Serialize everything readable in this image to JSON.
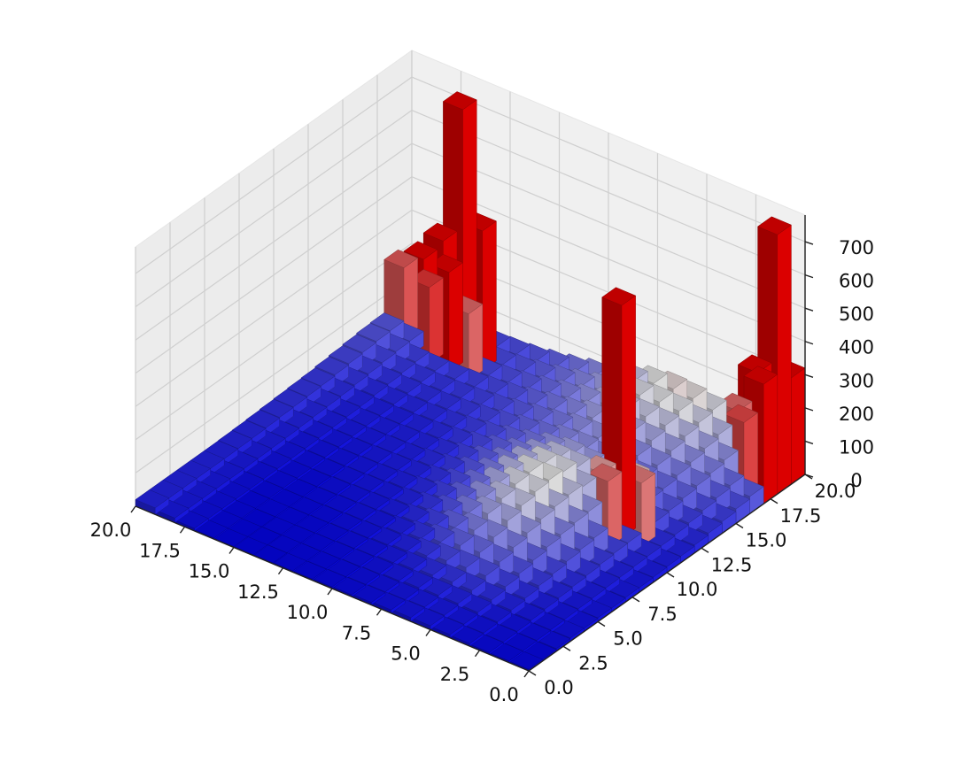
{
  "chart_data": {
    "type": "bar3d",
    "title": "",
    "xlabel": "",
    "ylabel": "",
    "zlabel": "",
    "x_ticks": [
      "0.0",
      "2.5",
      "5.0",
      "7.5",
      "10.0",
      "12.5",
      "15.0",
      "17.5",
      "20.0"
    ],
    "y_ticks": [
      "0.0",
      "2.5",
      "5.0",
      "7.5",
      "10.0",
      "12.5",
      "15.0",
      "17.5",
      "20.0"
    ],
    "z_ticks": [
      "0",
      "100",
      "200",
      "300",
      "400",
      "500",
      "600",
      "700"
    ],
    "xlim": [
      0,
      20
    ],
    "ylim": [
      0,
      20
    ],
    "zlim": [
      0,
      780
    ],
    "grid": true,
    "colormap": "bwr",
    "bar_size": 1,
    "base_heights": [
      [
        5,
        5,
        8,
        10,
        10,
        12,
        12,
        14,
        14,
        16,
        18,
        20,
        24,
        30,
        36,
        44,
        52,
        60,
        70,
        80
      ],
      [
        5,
        6,
        8,
        10,
        12,
        14,
        16,
        18,
        20,
        22,
        24,
        26,
        30,
        36,
        44,
        52,
        60,
        70,
        80,
        90
      ],
      [
        6,
        8,
        10,
        14,
        18,
        22,
        26,
        30,
        34,
        38,
        40,
        42,
        44,
        48,
        56,
        64,
        72,
        82,
        92,
        100
      ],
      [
        8,
        10,
        14,
        20,
        26,
        34,
        40,
        48,
        54,
        60,
        62,
        60,
        56,
        56,
        60,
        70,
        80,
        92,
        104,
        112
      ],
      [
        10,
        12,
        18,
        26,
        36,
        46,
        56,
        66,
        74,
        80,
        84,
        80,
        70,
        64,
        66,
        76,
        90,
        104,
        116,
        124
      ],
      [
        12,
        14,
        20,
        30,
        44,
        56,
        70,
        84,
        96,
        104,
        110,
        104,
        90,
        74,
        70,
        80,
        96,
        112,
        126,
        134
      ],
      [
        12,
        14,
        20,
        30,
        44,
        60,
        76,
        96,
        112,
        124,
        130,
        124,
        108,
        88,
        76,
        82,
        98,
        114,
        128,
        138
      ],
      [
        10,
        12,
        18,
        26,
        40,
        56,
        72,
        92,
        108,
        122,
        128,
        124,
        110,
        92,
        80,
        84,
        98,
        112,
        124,
        130
      ],
      [
        8,
        10,
        14,
        20,
        30,
        42,
        56,
        70,
        84,
        96,
        102,
        100,
        92,
        82,
        76,
        80,
        90,
        100,
        108,
        112
      ],
      [
        6,
        8,
        10,
        14,
        20,
        28,
        36,
        46,
        56,
        64,
        70,
        72,
        70,
        66,
        64,
        68,
        76,
        84,
        90,
        92
      ],
      [
        5,
        6,
        8,
        10,
        14,
        18,
        24,
        30,
        36,
        42,
        48,
        52,
        54,
        54,
        56,
        60,
        66,
        72,
        76,
        78
      ],
      [
        4,
        5,
        6,
        8,
        10,
        12,
        16,
        20,
        24,
        28,
        32,
        36,
        40,
        42,
        46,
        50,
        56,
        60,
        64,
        66
      ],
      [
        4,
        4,
        5,
        6,
        8,
        10,
        12,
        14,
        18,
        20,
        24,
        26,
        30,
        34,
        38,
        42,
        46,
        50,
        54,
        56
      ],
      [
        3,
        4,
        4,
        5,
        6,
        8,
        10,
        12,
        14,
        16,
        18,
        20,
        24,
        28,
        32,
        36,
        40,
        44,
        46,
        48
      ],
      [
        3,
        3,
        4,
        4,
        5,
        6,
        8,
        10,
        12,
        14,
        16,
        18,
        20,
        24,
        28,
        32,
        36,
        40,
        42,
        44
      ],
      [
        3,
        3,
        3,
        4,
        4,
        5,
        6,
        8,
        10,
        12,
        14,
        16,
        18,
        22,
        26,
        30,
        34,
        38,
        40,
        42
      ],
      [
        4,
        4,
        4,
        4,
        5,
        6,
        7,
        8,
        10,
        12,
        14,
        16,
        18,
        22,
        26,
        30,
        34,
        36,
        38,
        40
      ],
      [
        8,
        8,
        8,
        8,
        8,
        9,
        10,
        11,
        12,
        14,
        16,
        18,
        20,
        24,
        28,
        32,
        36,
        38,
        40,
        42
      ],
      [
        14,
        14,
        14,
        14,
        14,
        15,
        16,
        17,
        18,
        20,
        22,
        24,
        26,
        30,
        34,
        38,
        42,
        44,
        46,
        48
      ],
      [
        20,
        20,
        20,
        20,
        20,
        20,
        21,
        22,
        24,
        26,
        28,
        30,
        32,
        36,
        40,
        44,
        48,
        50,
        52,
        54
      ]
    ],
    "peaks": [
      {
        "x": 3,
        "y": 11,
        "value": 700
      },
      {
        "x": 2,
        "y": 11,
        "value": 190
      },
      {
        "x": 4,
        "y": 11,
        "value": 170
      },
      {
        "x": 3,
        "y": 10,
        "value": 200
      },
      {
        "x": 3,
        "y": 12,
        "value": 150
      },
      {
        "x": 0,
        "y": 18,
        "value": 780
      },
      {
        "x": 1,
        "y": 18,
        "value": 340
      },
      {
        "x": 0,
        "y": 17,
        "value": 360
      },
      {
        "x": 0,
        "y": 19,
        "value": 320
      },
      {
        "x": 1,
        "y": 17,
        "value": 220
      },
      {
        "x": 2,
        "y": 18,
        "value": 200
      },
      {
        "x": 16,
        "y": 18,
        "value": 760
      },
      {
        "x": 15,
        "y": 18,
        "value": 420
      },
      {
        "x": 17,
        "y": 18,
        "value": 340
      },
      {
        "x": 16,
        "y": 17,
        "value": 300
      },
      {
        "x": 16,
        "y": 19,
        "value": 290
      },
      {
        "x": 18,
        "y": 18,
        "value": 260
      },
      {
        "x": 19,
        "y": 18,
        "value": 210
      },
      {
        "x": 17,
        "y": 17,
        "value": 230
      },
      {
        "x": 15,
        "y": 17,
        "value": 200
      }
    ]
  }
}
